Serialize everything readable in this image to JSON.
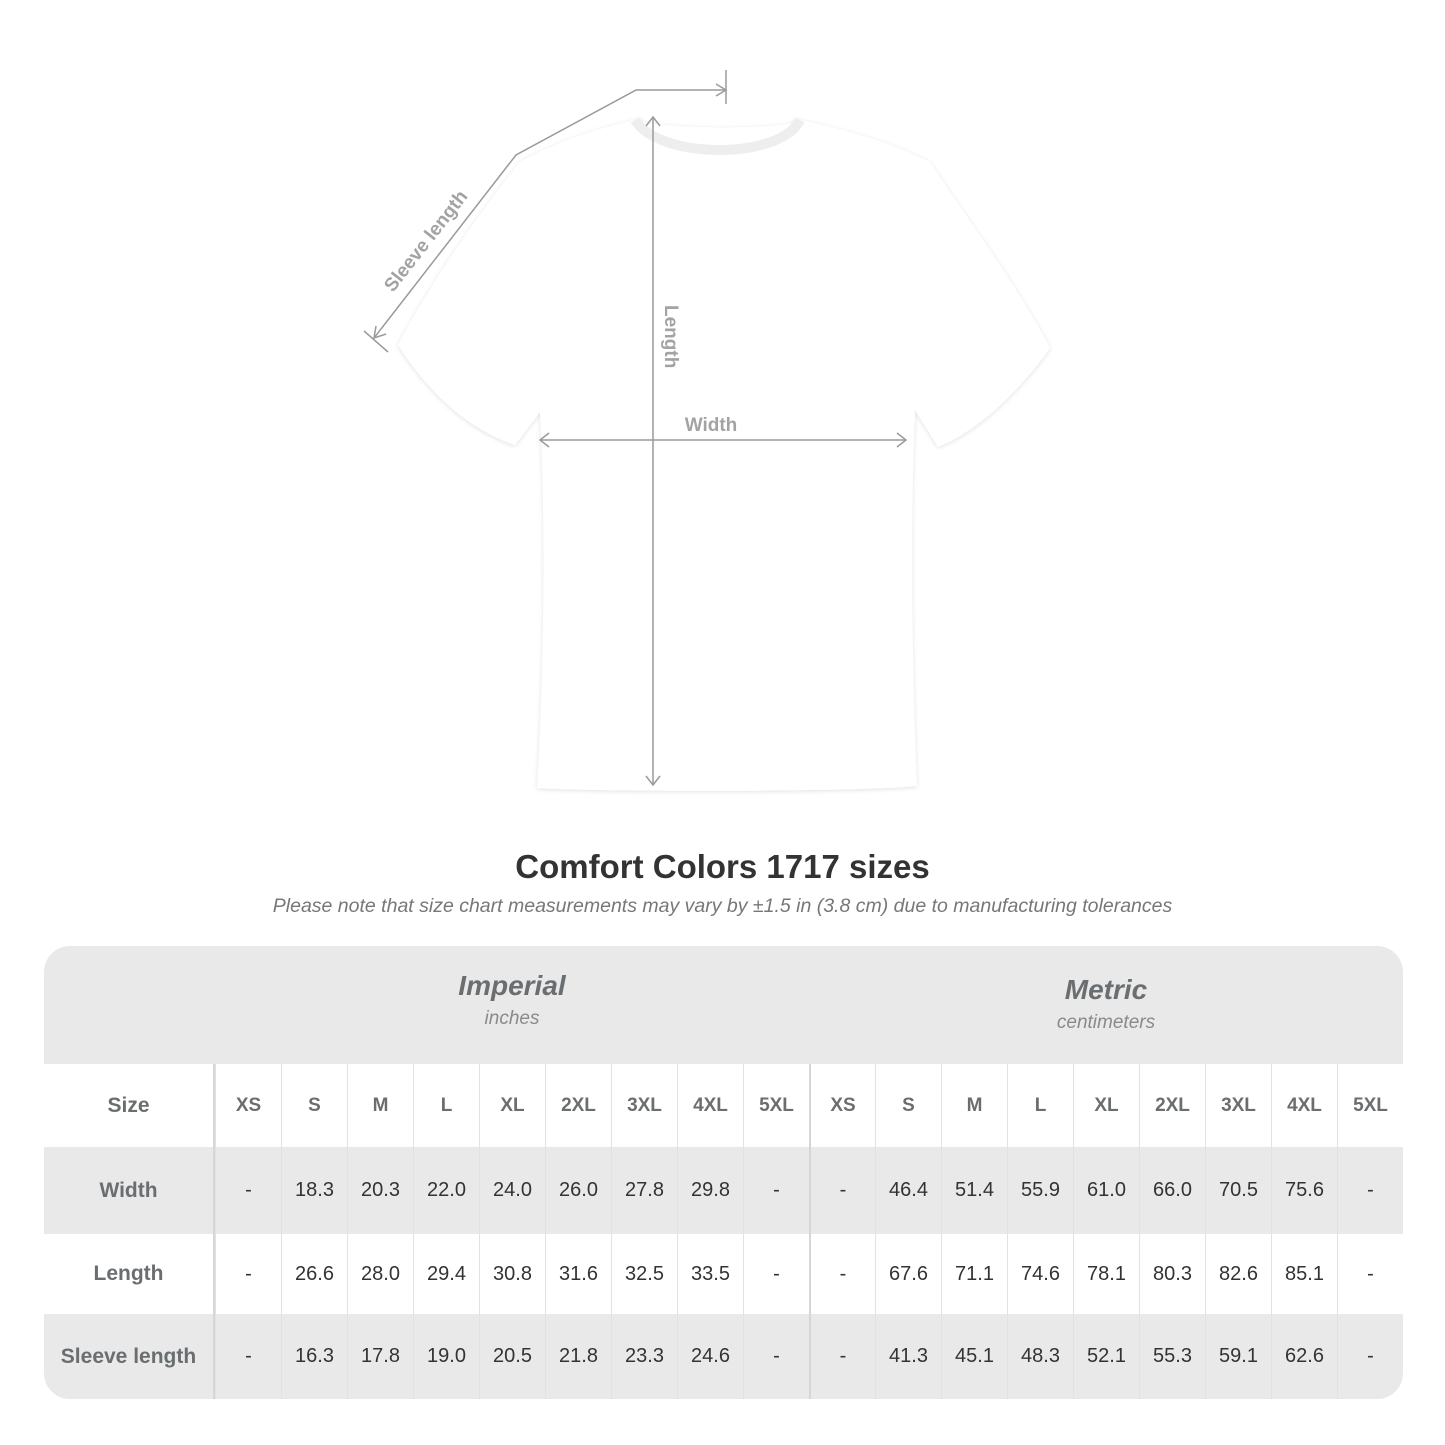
{
  "diagram": {
    "labels": {
      "sleeve": "Sleeve length",
      "length": "Length",
      "width": "Width"
    },
    "shirt_color": "#ffffff",
    "line_color": "#9a9a9a"
  },
  "title": "Comfort Colors 1717 sizes",
  "subtitle": "Please note that size chart measurements may vary by ±1.5 in (3.8 cm) due to manufacturing tolerances",
  "table": {
    "imperial": {
      "title": "Imperial",
      "unit": "inches"
    },
    "metric": {
      "title": "Metric",
      "unit": "centimeters"
    },
    "size_label": "Size",
    "sizes": [
      "XS",
      "S",
      "M",
      "L",
      "XL",
      "2XL",
      "3XL",
      "4XL",
      "5XL"
    ],
    "rows": [
      {
        "label": "Width",
        "imperial": [
          "-",
          "18.3",
          "20.3",
          "22.0",
          "24.0",
          "26.0",
          "27.8",
          "29.8",
          "-"
        ],
        "metric": [
          "-",
          "46.4",
          "51.4",
          "55.9",
          "61.0",
          "66.0",
          "70.5",
          "75.6",
          "-"
        ]
      },
      {
        "label": "Length",
        "imperial": [
          "-",
          "26.6",
          "28.0",
          "29.4",
          "30.8",
          "31.6",
          "32.5",
          "33.5",
          "-"
        ],
        "metric": [
          "-",
          "67.6",
          "71.1",
          "74.6",
          "78.1",
          "80.3",
          "82.6",
          "85.1",
          "-"
        ]
      },
      {
        "label": "Sleeve length",
        "imperial": [
          "-",
          "16.3",
          "17.8",
          "19.0",
          "20.5",
          "21.8",
          "23.3",
          "24.6",
          "-"
        ],
        "metric": [
          "-",
          "41.3",
          "45.1",
          "48.3",
          "52.1",
          "55.3",
          "59.1",
          "62.6",
          "-"
        ]
      }
    ]
  }
}
